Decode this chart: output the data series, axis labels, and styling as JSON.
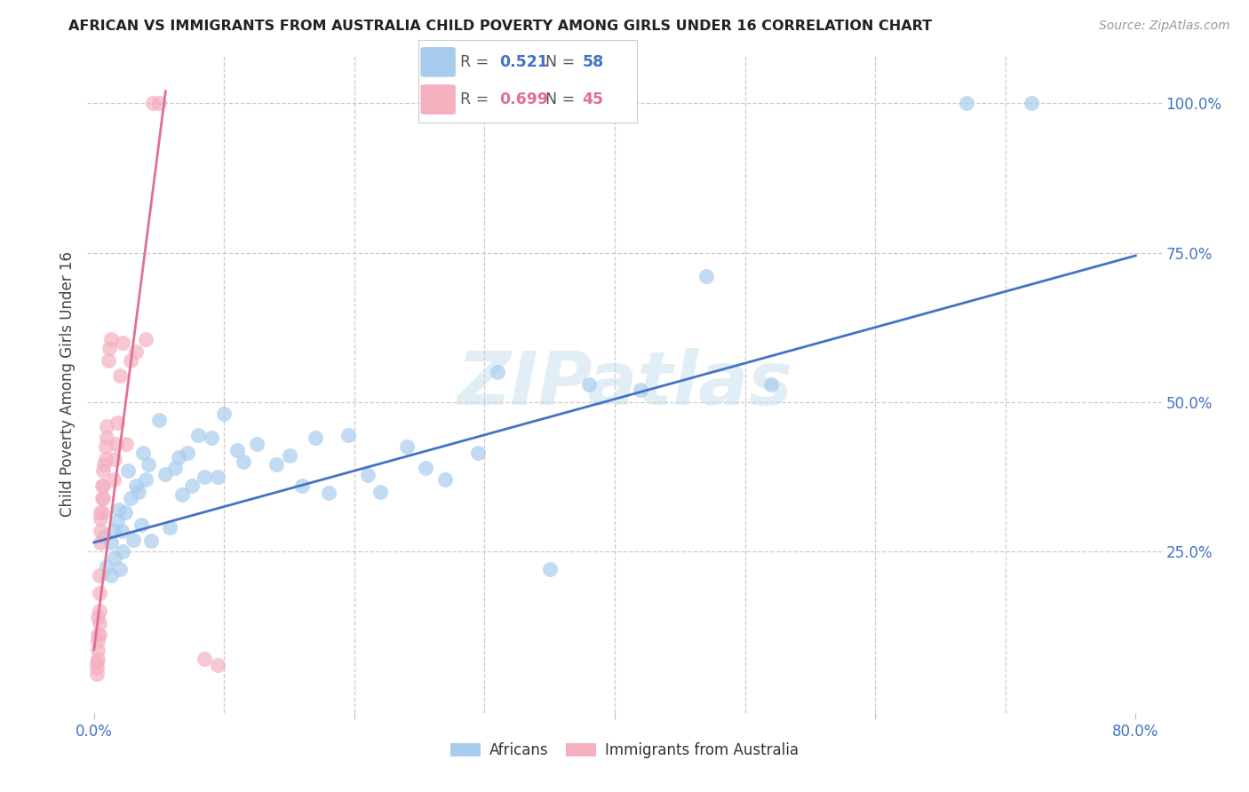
{
  "title": "AFRICAN VS IMMIGRANTS FROM AUSTRALIA CHILD POVERTY AMONG GIRLS UNDER 16 CORRELATION CHART",
  "source": "Source: ZipAtlas.com",
  "ylabel": "Child Poverty Among Girls Under 16",
  "watermark": "ZIPatlas",
  "xlim": [
    -0.005,
    0.82
  ],
  "ylim": [
    -0.02,
    1.08
  ],
  "xticks": [
    0.0,
    0.2,
    0.4,
    0.6,
    0.8
  ],
  "xtick_labels": [
    "0.0%",
    "",
    "",
    "",
    "80.0%"
  ],
  "yticks": [
    0.25,
    0.5,
    0.75,
    1.0
  ],
  "ytick_labels": [
    "25.0%",
    "50.0%",
    "75.0%",
    "100.0%"
  ],
  "blue_color": "#A8CCEE",
  "pink_color": "#F5B0C0",
  "blue_line_color": "#4472C4",
  "pink_line_color": "#E07090",
  "axis_color": "#4472C4",
  "legend_r_blue": "0.521",
  "legend_n_blue": "58",
  "legend_r_pink": "0.699",
  "legend_n_pink": "45",
  "blue_scatter_x": [
    0.008,
    0.01,
    0.013,
    0.015,
    0.016,
    0.018,
    0.019,
    0.02,
    0.021,
    0.013,
    0.022,
    0.024,
    0.026,
    0.028,
    0.03,
    0.032,
    0.034,
    0.036,
    0.038,
    0.04,
    0.042,
    0.044,
    0.05,
    0.055,
    0.058,
    0.062,
    0.065,
    0.068,
    0.072,
    0.075,
    0.08,
    0.085,
    0.09,
    0.095,
    0.1,
    0.11,
    0.115,
    0.125,
    0.14,
    0.15,
    0.16,
    0.17,
    0.18,
    0.195,
    0.21,
    0.22,
    0.24,
    0.255,
    0.27,
    0.295,
    0.31,
    0.35,
    0.38,
    0.42,
    0.47,
    0.52,
    0.67,
    0.72
  ],
  "blue_scatter_y": [
    0.275,
    0.225,
    0.265,
    0.285,
    0.24,
    0.3,
    0.32,
    0.22,
    0.285,
    0.21,
    0.25,
    0.315,
    0.385,
    0.34,
    0.27,
    0.36,
    0.35,
    0.295,
    0.415,
    0.37,
    0.395,
    0.268,
    0.47,
    0.38,
    0.29,
    0.39,
    0.408,
    0.345,
    0.415,
    0.36,
    0.445,
    0.375,
    0.44,
    0.375,
    0.48,
    0.42,
    0.4,
    0.43,
    0.395,
    0.41,
    0.36,
    0.44,
    0.348,
    0.445,
    0.378,
    0.35,
    0.425,
    0.39,
    0.37,
    0.415,
    0.55,
    0.22,
    0.53,
    0.52,
    0.71,
    0.53,
    1.0,
    1.0
  ],
  "pink_scatter_x": [
    0.002,
    0.002,
    0.002,
    0.003,
    0.003,
    0.003,
    0.003,
    0.003,
    0.004,
    0.004,
    0.004,
    0.004,
    0.004,
    0.005,
    0.005,
    0.005,
    0.005,
    0.006,
    0.006,
    0.006,
    0.007,
    0.007,
    0.007,
    0.008,
    0.009,
    0.009,
    0.01,
    0.01,
    0.011,
    0.012,
    0.013,
    0.015,
    0.016,
    0.017,
    0.018,
    0.02,
    0.022,
    0.025,
    0.028,
    0.032,
    0.04,
    0.045,
    0.05,
    0.085,
    0.095
  ],
  "pink_scatter_y": [
    0.045,
    0.055,
    0.065,
    0.07,
    0.085,
    0.1,
    0.11,
    0.14,
    0.11,
    0.13,
    0.15,
    0.18,
    0.21,
    0.265,
    0.285,
    0.305,
    0.315,
    0.315,
    0.34,
    0.36,
    0.34,
    0.36,
    0.385,
    0.395,
    0.405,
    0.425,
    0.44,
    0.46,
    0.57,
    0.59,
    0.605,
    0.37,
    0.405,
    0.43,
    0.465,
    0.545,
    0.6,
    0.43,
    0.57,
    0.585,
    0.605,
    1.0,
    1.0,
    0.07,
    0.06
  ],
  "blue_line_x": [
    0.0,
    0.8
  ],
  "blue_line_y": [
    0.265,
    0.745
  ],
  "pink_line_x": [
    0.0,
    0.055
  ],
  "pink_line_y": [
    0.085,
    1.02
  ]
}
